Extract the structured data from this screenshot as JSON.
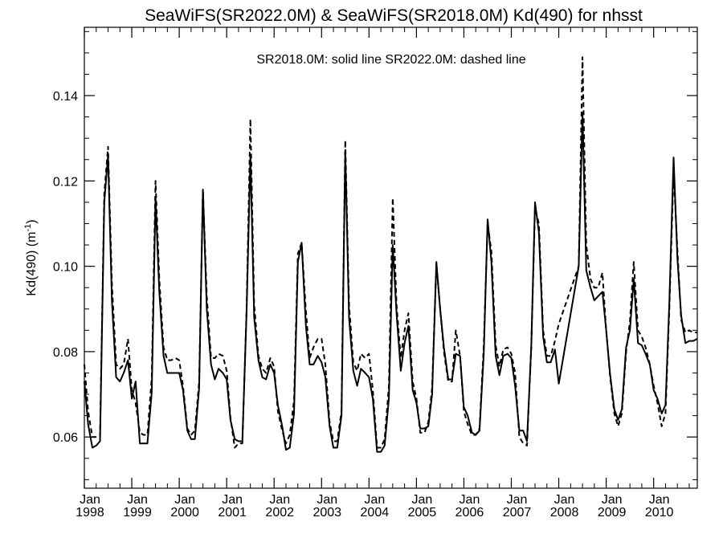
{
  "chart_data": {
    "type": "line",
    "title": "SeaWiFS(SR2022.0M) & SeaWiFS(SR2018.0M)  Kd(490) for nhsst",
    "annotation": "SR2018.0M: solid line   SR2022.0M: dashed line",
    "ylabel": "Kd(490) (m",
    "ylabel_sup": "-1",
    "ylabel_close": ")",
    "xlabel": "",
    "xlim": [
      1998.0,
      2010.92
    ],
    "ylim": [
      0.048,
      0.156
    ],
    "y_ticks": [
      0.06,
      0.08,
      0.1,
      0.12,
      0.14
    ],
    "y_tick_labels": [
      "0.06",
      "0.08",
      "0.10",
      "0.12",
      "0.14"
    ],
    "x_ticks": [
      1998,
      1999,
      2000,
      2001,
      2002,
      2003,
      2004,
      2005,
      2006,
      2007,
      2008,
      2009,
      2010
    ],
    "x_tick_month": "Jan",
    "x_tick_years": [
      "1998",
      "1999",
      "2000",
      "2001",
      "2002",
      "2003",
      "2004",
      "2005",
      "2006",
      "2007",
      "2008",
      "2009",
      "2010"
    ],
    "grid": false,
    "series": [
      {
        "name": "SR2018.0M",
        "style": "solid",
        "color": "#000000",
        "x": [
          1998.0,
          1998.08,
          1998.17,
          1998.25,
          1998.33,
          1998.42,
          1998.5,
          1998.58,
          1998.67,
          1998.75,
          1998.83,
          1998.92,
          1999.0,
          1999.08,
          1999.17,
          1999.25,
          1999.33,
          1999.42,
          1999.5,
          1999.58,
          1999.67,
          1999.75,
          1999.83,
          1999.92,
          2000.0,
          2000.08,
          2000.17,
          2000.25,
          2000.33,
          2000.42,
          2000.5,
          2000.58,
          2000.67,
          2000.75,
          2000.83,
          2000.92,
          2001.0,
          2001.08,
          2001.17,
          2001.25,
          2001.33,
          2001.42,
          2001.5,
          2001.58,
          2001.67,
          2001.75,
          2001.83,
          2001.92,
          2002.0,
          2002.08,
          2002.17,
          2002.25,
          2002.33,
          2002.42,
          2002.5,
          2002.58,
          2002.67,
          2002.75,
          2002.83,
          2002.92,
          2003.0,
          2003.08,
          2003.17,
          2003.25,
          2003.33,
          2003.42,
          2003.5,
          2003.58,
          2003.67,
          2003.75,
          2003.83,
          2003.92,
          2004.0,
          2004.08,
          2004.17,
          2004.25,
          2004.33,
          2004.42,
          2004.5,
          2004.58,
          2004.67,
          2004.75,
          2004.83,
          2004.92,
          2005.0,
          2005.08,
          2005.17,
          2005.25,
          2005.33,
          2005.42,
          2005.5,
          2005.58,
          2005.67,
          2005.75,
          2005.83,
          2005.92,
          2006.0,
          2006.08,
          2006.17,
          2006.25,
          2006.33,
          2006.42,
          2006.5,
          2006.58,
          2006.67,
          2006.75,
          2006.83,
          2006.92,
          2007.0,
          2007.08,
          2007.17,
          2007.25,
          2007.33,
          2007.42,
          2007.5,
          2007.58,
          2007.67,
          2007.75,
          2007.83,
          2007.92,
          2008.0,
          2008.42,
          2008.5,
          2008.58,
          2008.67,
          2008.75,
          2008.83,
          2008.92,
          2009.0,
          2009.08,
          2009.17,
          2009.25,
          2009.33,
          2009.42,
          2009.5,
          2009.58,
          2009.67,
          2009.75,
          2009.83,
          2009.92,
          2010.0,
          2010.08,
          2010.17,
          2010.25,
          2010.33,
          2010.42,
          2010.5,
          2010.58,
          2010.67,
          2010.75,
          2010.83,
          2010.92
        ],
        "values": [
          0.073,
          0.063,
          0.0575,
          0.058,
          0.059,
          0.115,
          0.126,
          0.092,
          0.074,
          0.073,
          0.075,
          0.078,
          0.069,
          0.073,
          0.0585,
          0.0585,
          0.0585,
          0.0705,
          0.116,
          0.094,
          0.079,
          0.075,
          0.075,
          0.075,
          0.075,
          0.071,
          0.0615,
          0.0595,
          0.0595,
          0.0715,
          0.118,
          0.09,
          0.077,
          0.0735,
          0.076,
          0.075,
          0.0735,
          0.064,
          0.0595,
          0.059,
          0.059,
          0.0895,
          0.126,
          0.088,
          0.078,
          0.074,
          0.0735,
          0.077,
          0.075,
          0.0675,
          0.0625,
          0.057,
          0.0575,
          0.0655,
          0.101,
          0.1055,
          0.086,
          0.077,
          0.077,
          0.079,
          0.0775,
          0.074,
          0.0625,
          0.0575,
          0.0575,
          0.065,
          0.127,
          0.088,
          0.0755,
          0.072,
          0.076,
          0.075,
          0.074,
          0.069,
          0.0565,
          0.0565,
          0.058,
          0.069,
          0.105,
          0.089,
          0.0755,
          0.082,
          0.086,
          0.071,
          0.068,
          0.062,
          0.062,
          0.0625,
          0.07,
          0.101,
          0.09,
          0.081,
          0.0735,
          0.0735,
          0.0795,
          0.079,
          0.067,
          0.065,
          0.061,
          0.0605,
          0.0615,
          0.0795,
          0.111,
          0.101,
          0.079,
          0.0745,
          0.079,
          0.0795,
          0.0785,
          0.072,
          0.0615,
          0.0615,
          0.059,
          0.081,
          0.115,
          0.108,
          0.0835,
          0.0775,
          0.0775,
          0.0805,
          0.0725,
          0.1,
          0.136,
          0.099,
          0.095,
          0.092,
          0.093,
          0.094,
          0.085,
          0.075,
          0.0665,
          0.064,
          0.0665,
          0.081,
          0.085,
          0.097,
          0.082,
          0.0815,
          0.0795,
          0.077,
          0.071,
          0.069,
          0.0655,
          0.0675,
          0.0915,
          0.1255,
          0.102,
          0.0885,
          0.082,
          0.0825,
          0.0825,
          0.083
        ]
      },
      {
        "name": "SR2022.0M",
        "style": "dashed",
        "color": "#000000",
        "x": [
          1998.0,
          1998.08,
          1998.17,
          1998.25,
          1998.33,
          1998.42,
          1998.5,
          1998.58,
          1998.67,
          1998.75,
          1998.83,
          1998.92,
          1999.0,
          1999.08,
          1999.17,
          1999.25,
          1999.33,
          1999.42,
          1999.5,
          1999.58,
          1999.67,
          1999.75,
          1999.83,
          1999.92,
          2000.0,
          2000.08,
          2000.17,
          2000.25,
          2000.33,
          2000.42,
          2000.5,
          2000.58,
          2000.67,
          2000.75,
          2000.83,
          2000.92,
          2001.0,
          2001.08,
          2001.17,
          2001.25,
          2001.33,
          2001.42,
          2001.5,
          2001.58,
          2001.67,
          2001.75,
          2001.83,
          2001.92,
          2002.0,
          2002.08,
          2002.17,
          2002.25,
          2002.33,
          2002.42,
          2002.5,
          2002.58,
          2002.67,
          2002.75,
          2002.83,
          2002.92,
          2003.0,
          2003.08,
          2003.17,
          2003.25,
          2003.33,
          2003.42,
          2003.5,
          2003.58,
          2003.67,
          2003.75,
          2003.83,
          2003.92,
          2004.0,
          2004.08,
          2004.17,
          2004.25,
          2004.33,
          2004.42,
          2004.5,
          2004.58,
          2004.67,
          2004.75,
          2004.83,
          2004.92,
          2005.0,
          2005.08,
          2005.17,
          2005.25,
          2005.33,
          2005.42,
          2005.5,
          2005.58,
          2005.67,
          2005.75,
          2005.83,
          2005.92,
          2006.0,
          2006.08,
          2006.17,
          2006.25,
          2006.33,
          2006.42,
          2006.5,
          2006.58,
          2006.67,
          2006.75,
          2006.83,
          2006.92,
          2007.0,
          2007.08,
          2007.17,
          2007.25,
          2007.33,
          2007.42,
          2007.5,
          2007.58,
          2007.67,
          2007.75,
          2007.83,
          2007.92,
          2008.0,
          2008.42,
          2008.5,
          2008.58,
          2008.67,
          2008.75,
          2008.83,
          2008.92,
          2009.0,
          2009.08,
          2009.17,
          2009.25,
          2009.33,
          2009.42,
          2009.5,
          2009.58,
          2009.67,
          2009.75,
          2009.83,
          2009.92,
          2010.0,
          2010.08,
          2010.17,
          2010.25,
          2010.33,
          2010.42,
          2010.5,
          2010.58,
          2010.67,
          2010.75,
          2010.83,
          2010.92
        ],
        "values": [
          0.077,
          0.066,
          0.06,
          0.06,
          0.06,
          0.117,
          0.128,
          0.096,
          0.077,
          0.076,
          0.077,
          0.083,
          0.071,
          0.068,
          0.061,
          0.0605,
          0.0605,
          0.074,
          0.12,
          0.097,
          0.081,
          0.078,
          0.078,
          0.0785,
          0.078,
          0.072,
          0.062,
          0.0605,
          0.0615,
          0.073,
          0.118,
          0.093,
          0.0785,
          0.0785,
          0.0795,
          0.079,
          0.0755,
          0.0645,
          0.0575,
          0.0585,
          0.0585,
          0.0905,
          0.1345,
          0.091,
          0.079,
          0.076,
          0.075,
          0.0785,
          0.0765,
          0.066,
          0.0615,
          0.0585,
          0.0605,
          0.0685,
          0.103,
          0.1055,
          0.0895,
          0.0785,
          0.081,
          0.083,
          0.083,
          0.077,
          0.0635,
          0.059,
          0.059,
          0.066,
          0.1295,
          0.091,
          0.0775,
          0.0755,
          0.0795,
          0.0785,
          0.0795,
          0.071,
          0.0575,
          0.0575,
          0.0595,
          0.072,
          0.116,
          0.091,
          0.0785,
          0.085,
          0.089,
          0.073,
          0.069,
          0.061,
          0.061,
          0.0635,
          0.0715,
          0.1005,
          0.09,
          0.08,
          0.073,
          0.073,
          0.085,
          0.079,
          0.066,
          0.063,
          0.0605,
          0.0605,
          0.062,
          0.0815,
          0.11,
          0.1035,
          0.0815,
          0.0765,
          0.0805,
          0.081,
          0.0795,
          0.075,
          0.06,
          0.0585,
          0.058,
          0.081,
          0.1135,
          0.11,
          0.085,
          0.079,
          0.079,
          0.0825,
          0.0865,
          0.1,
          0.149,
          0.105,
          0.097,
          0.095,
          0.095,
          0.0985,
          0.085,
          0.0745,
          0.0655,
          0.0625,
          0.0655,
          0.08,
          0.087,
          0.101,
          0.085,
          0.0835,
          0.081,
          0.077,
          0.072,
          0.068,
          0.0625,
          0.0655,
          0.09,
          0.1225,
          0.104,
          0.0875,
          0.0845,
          0.085,
          0.0845,
          0.0845
        ]
      }
    ]
  }
}
